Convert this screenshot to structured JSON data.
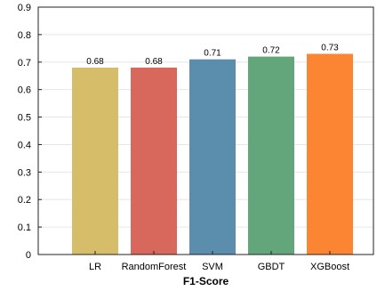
{
  "chart_data": {
    "type": "bar",
    "categories": [
      "LR",
      "RandomForest",
      "SVM",
      "GBDT",
      "XGBoost"
    ],
    "values": [
      0.68,
      0.68,
      0.71,
      0.72,
      0.73
    ],
    "value_labels": [
      "0.68",
      "0.68",
      "0.71",
      "0.72",
      "0.73"
    ],
    "colors": [
      "#d6bd69",
      "#d8685c",
      "#5b8eac",
      "#63a67b",
      "#fb8532"
    ],
    "title": "",
    "xlabel": "F1-Score",
    "ylabel": "",
    "ylim": [
      0,
      0.9
    ],
    "yticks": [
      0,
      0.1,
      0.2,
      0.3,
      0.4,
      0.5,
      0.6,
      0.7,
      0.8,
      0.9
    ],
    "ytick_labels": [
      "0",
      "0.1",
      "0.2",
      "0.3",
      "0.4",
      "0.5",
      "0.6",
      "0.7",
      "0.8",
      "0.9"
    ],
    "grid": true,
    "legend": "none"
  }
}
